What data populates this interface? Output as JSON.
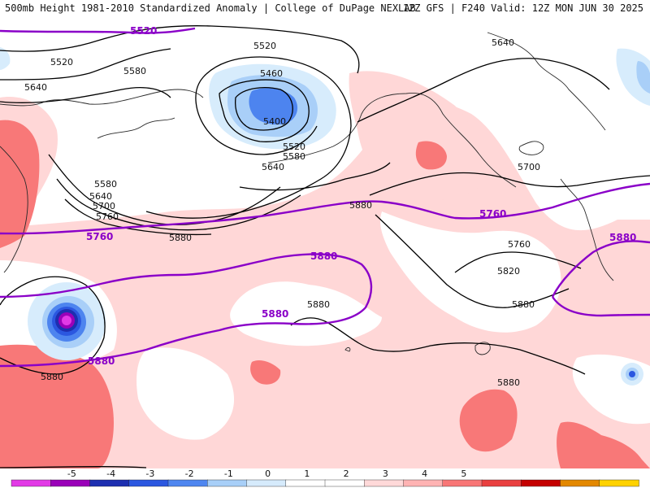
{
  "header": {
    "title_left": "500mb Height 1981-2010 Standardized Anomaly | College of DuPage NEXLAB",
    "title_right": "12Z GFS | F240 Valid: 12Z MON JUN 30 2025"
  },
  "colors": {
    "background": "#ffffff",
    "contour_black": "#000000",
    "contour_purple": "#8a00c8",
    "coast": "#2a2a2a"
  },
  "contour_labels": {
    "black": [
      "5520",
      "5520",
      "5580",
      "5640",
      "5460",
      "5400",
      "5520",
      "5580",
      "5640",
      "5580",
      "5640",
      "5700",
      "5760",
      "5880",
      "5880",
      "5640",
      "5700",
      "5760",
      "5820",
      "5880",
      "5880",
      "5880",
      "5880"
    ],
    "purple": [
      "5520",
      "5760",
      "5880",
      "5880",
      "5880",
      "5760",
      "5880"
    ]
  },
  "legend": {
    "ticks": [
      "-5",
      "-4",
      "-3",
      "-2",
      "-1",
      "0",
      "1",
      "2",
      "3",
      "4",
      "5"
    ],
    "colors": [
      "#e23ae6",
      "#9a00b8",
      "#1d2fb0",
      "#2b57e0",
      "#4f86f0",
      "#a8cff8",
      "#d6ebfc",
      "#ffffff",
      "#ffffff",
      "#ffd9d9",
      "#ffb3b3",
      "#f87676",
      "#e94040",
      "#c40000",
      "#e38800",
      "#ffd200"
    ]
  }
}
